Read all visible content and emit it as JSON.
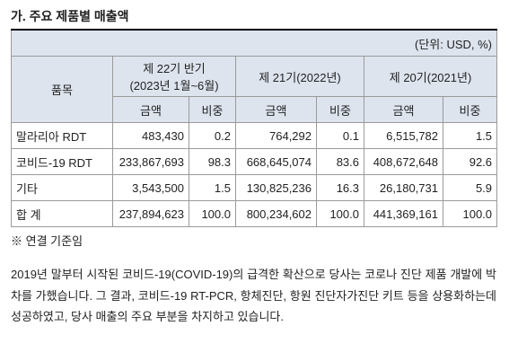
{
  "header": {
    "title": "가. 주요 제품별 매출액"
  },
  "table": {
    "unit": "(단위: USD, %)",
    "item_header": "품목",
    "periods": [
      [
        "제 22기 반기",
        "(2023년 1월~6월)"
      ],
      [
        "제 21기(2022년)"
      ],
      [
        "제 20기(2021년)"
      ]
    ],
    "subheaders": [
      "금액",
      "비중",
      "금액",
      "비중",
      "금액",
      "비중"
    ],
    "rows": [
      [
        "말라리아 RDT",
        "483,430",
        "0.2",
        "764,292",
        "0.1",
        "6,515,782",
        "1.5"
      ],
      [
        "코비드-19 RDT",
        "233,867,693",
        "98.3",
        "668,645,074",
        "83.6",
        "408,672,648",
        "92.6"
      ],
      [
        "기타",
        "3,543,500",
        "1.5",
        "130,825,236",
        "16.3",
        "26,180,731",
        "5.9"
      ],
      [
        "합 계",
        "237,894,623",
        "100.0",
        "800,234,602",
        "100.0",
        "441,369,161",
        "100.0"
      ]
    ]
  },
  "note": "※ 연결 기준임",
  "paragraph": "2019년 말부터 시작된 코비드-19(COVID-19)의 급격한 확산으로 당사는 코로나 진단 제품 개발에 박차를 가했습니다. 그 결과, 코비드-19 RT-PCR, 항체진단, 항원 진단자가진단 키트 등을 상용화하는데 성공하였고, 당사 매출의 주요 부분을 차지하고 있습니다."
}
